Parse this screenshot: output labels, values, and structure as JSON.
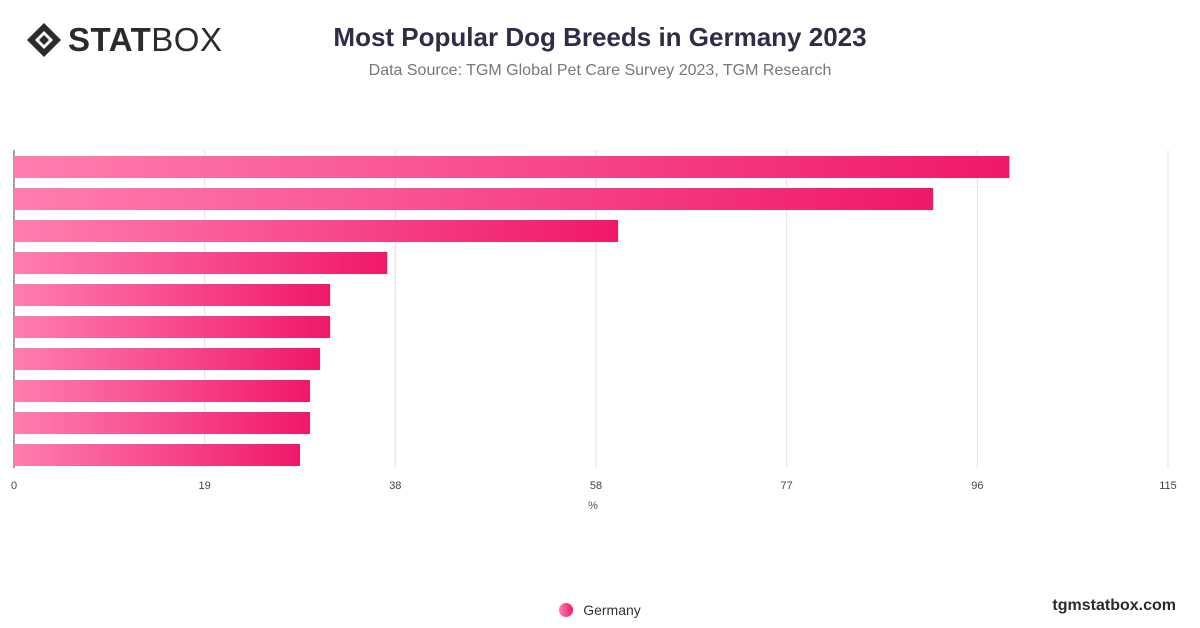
{
  "brand": {
    "logo_bold": "STAT",
    "logo_light": "BOX",
    "site": "tgmstatbox.com"
  },
  "header": {
    "title": "Most Popular Dog Breeds in Germany 2023",
    "subtitle": "Data Source: TGM Global Pet Care Survey 2023, TGM Research"
  },
  "colors": {
    "bar_start": "#ff7eb0",
    "bar_end": "#f0186a",
    "grid": "#e0e0e0",
    "axis": "#444444",
    "logo": "#2b2b2b"
  },
  "chart_data": {
    "type": "bar",
    "orientation": "horizontal",
    "title": "Most Popular Dog Breeds in Germany 2023",
    "xlabel": "%",
    "xlim": [
      0,
      115
    ],
    "x_ticks": [
      "0",
      "19",
      "38",
      "58",
      "77",
      "96",
      "115"
    ],
    "grid": true,
    "legend_position": "bottom",
    "series": [
      {
        "name": "Germany",
        "values": [
          99.2,
          91.6,
          60.2,
          37.2,
          31.5,
          31.5,
          30.5,
          29.5,
          29.5,
          28.5
        ]
      }
    ]
  }
}
